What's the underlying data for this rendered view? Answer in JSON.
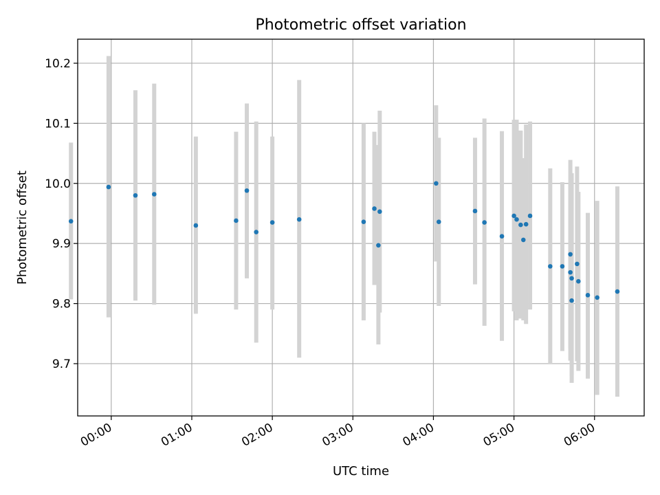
{
  "chart_data": {
    "type": "scatter",
    "title": "Photometric offset variation",
    "xlabel": "UTC time",
    "ylabel": "Photometric offset",
    "xlim": [
      "-00:25",
      "06:37"
    ],
    "ylim": [
      9.613,
      10.24
    ],
    "x_ticks": [
      "00:00",
      "01:00",
      "02:00",
      "03:00",
      "04:00",
      "05:00",
      "06:00"
    ],
    "y_ticks": [
      9.7,
      9.8,
      9.9,
      10.0,
      10.1,
      10.2
    ],
    "y_tick_labels": [
      "9.7",
      "9.8",
      "9.9",
      "10.0",
      "10.1",
      "10.2"
    ],
    "grid": true,
    "marker_color": "#1f77b4",
    "errorbar_color": "#d3d3d3",
    "series": [
      {
        "points": [
          {
            "x": "-00:30",
            "y": 9.937,
            "lo": 9.807,
            "hi": 10.068
          },
          {
            "x": "-00:02",
            "y": 9.994,
            "lo": 9.777,
            "hi": 10.212
          },
          {
            "x": "00:18",
            "y": 9.98,
            "lo": 9.805,
            "hi": 10.155
          },
          {
            "x": "00:32",
            "y": 9.982,
            "lo": 9.798,
            "hi": 10.166
          },
          {
            "x": "01:03",
            "y": 9.93,
            "lo": 9.783,
            "hi": 10.078
          },
          {
            "x": "01:33",
            "y": 9.938,
            "lo": 9.79,
            "hi": 10.086
          },
          {
            "x": "01:41",
            "y": 9.988,
            "lo": 9.842,
            "hi": 10.133
          },
          {
            "x": "01:48",
            "y": 9.919,
            "lo": 9.735,
            "hi": 10.103
          },
          {
            "x": "02:00",
            "y": 9.935,
            "lo": 9.79,
            "hi": 10.078
          },
          {
            "x": "02:20",
            "y": 9.94,
            "lo": 9.71,
            "hi": 10.172
          },
          {
            "x": "03:08",
            "y": 9.936,
            "lo": 9.772,
            "hi": 10.1
          },
          {
            "x": "03:16",
            "y": 9.958,
            "lo": 9.831,
            "hi": 10.086
          },
          {
            "x": "03:19",
            "y": 9.897,
            "lo": 9.732,
            "hi": 10.064
          },
          {
            "x": "03:20",
            "y": 9.953,
            "lo": 9.785,
            "hi": 10.121
          },
          {
            "x": "04:02",
            "y": 10.0,
            "lo": 9.87,
            "hi": 10.13
          },
          {
            "x": "04:04",
            "y": 9.936,
            "lo": 9.796,
            "hi": 10.076
          },
          {
            "x": "04:31",
            "y": 9.954,
            "lo": 9.832,
            "hi": 10.076
          },
          {
            "x": "04:38",
            "y": 9.935,
            "lo": 9.763,
            "hi": 10.108
          },
          {
            "x": "04:51",
            "y": 9.912,
            "lo": 9.738,
            "hi": 10.087
          },
          {
            "x": "05:00",
            "y": 9.946,
            "lo": 9.787,
            "hi": 10.106
          },
          {
            "x": "05:02",
            "y": 9.94,
            "lo": 9.772,
            "hi": 10.106
          },
          {
            "x": "05:05",
            "y": 9.931,
            "lo": 9.775,
            "hi": 10.088
          },
          {
            "x": "05:07",
            "y": 9.906,
            "lo": 9.772,
            "hi": 10.042
          },
          {
            "x": "05:09",
            "y": 9.932,
            "lo": 9.766,
            "hi": 10.098
          },
          {
            "x": "05:12",
            "y": 9.946,
            "lo": 9.79,
            "hi": 10.103
          },
          {
            "x": "05:27",
            "y": 9.862,
            "lo": 9.699,
            "hi": 10.025
          },
          {
            "x": "05:36",
            "y": 9.862,
            "lo": 9.721,
            "hi": 10.002
          },
          {
            "x": "05:42",
            "y": 9.882,
            "lo": 9.726,
            "hi": 10.039
          },
          {
            "x": "05:42",
            "y": 9.852,
            "lo": 9.705,
            "hi": 10.0
          },
          {
            "x": "05:43",
            "y": 9.842,
            "lo": 9.668,
            "hi": 10.017
          },
          {
            "x": "05:43",
            "y": 9.805,
            "lo": 9.68,
            "hi": 9.93
          },
          {
            "x": "05:47",
            "y": 9.866,
            "lo": 9.704,
            "hi": 10.028
          },
          {
            "x": "05:48",
            "y": 9.837,
            "lo": 9.688,
            "hi": 9.986
          },
          {
            "x": "05:55",
            "y": 9.814,
            "lo": 9.675,
            "hi": 9.951
          },
          {
            "x": "06:02",
            "y": 9.81,
            "lo": 9.648,
            "hi": 9.971
          },
          {
            "x": "06:17",
            "y": 9.82,
            "lo": 9.645,
            "hi": 9.995
          }
        ]
      }
    ]
  }
}
